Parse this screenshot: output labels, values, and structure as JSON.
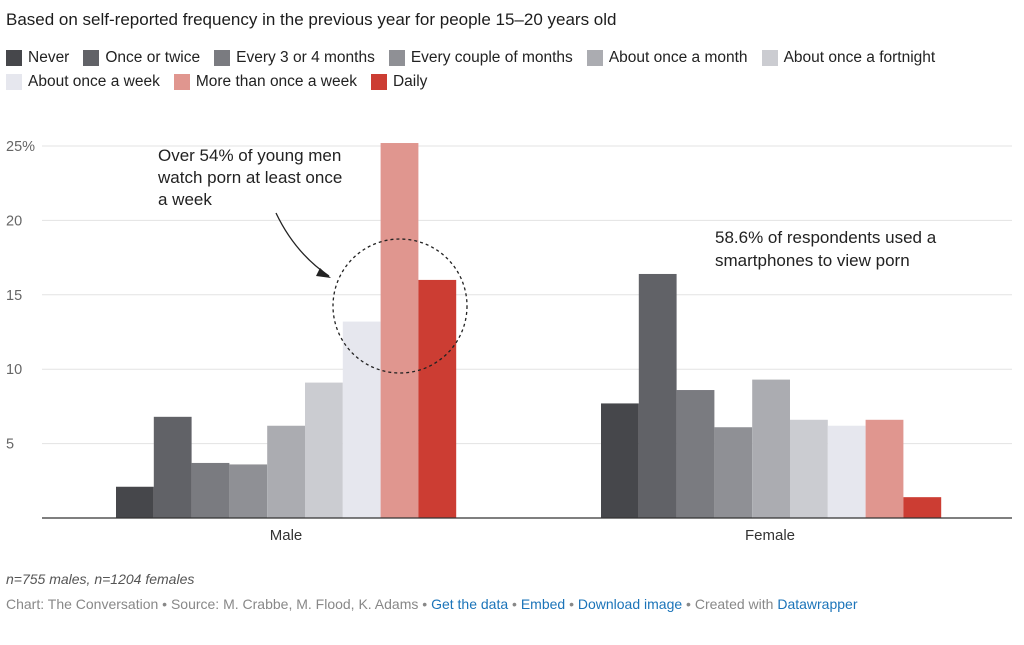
{
  "subtitle": "Based on self-reported frequency in the previous year for people 15–20 years old",
  "colors": [
    "#46474b",
    "#616267",
    "#7a7b80",
    "#8f9095",
    "#abacb1",
    "#cbccd1",
    "#e6e7ee",
    "#e0968f",
    "#cc3d33"
  ],
  "chart_data": {
    "type": "bar",
    "categories": [
      "Male",
      "Female"
    ],
    "series": [
      {
        "name": "Never",
        "values": [
          2.1,
          7.7
        ]
      },
      {
        "name": "Once or twice",
        "values": [
          6.8,
          16.4
        ]
      },
      {
        "name": "Every 3 or 4 months",
        "values": [
          3.7,
          8.6
        ]
      },
      {
        "name": "Every couple of months",
        "values": [
          3.6,
          6.1
        ]
      },
      {
        "name": "About once a month",
        "values": [
          6.2,
          9.3
        ]
      },
      {
        "name": "About once a fortnight",
        "values": [
          9.1,
          6.6
        ]
      },
      {
        "name": "About once a week",
        "values": [
          13.2,
          6.2
        ]
      },
      {
        "name": "More than once a week",
        "values": [
          25.2,
          6.6
        ]
      },
      {
        "name": "Daily",
        "values": [
          16.0,
          1.4
        ]
      }
    ],
    "ylim": [
      0,
      25
    ],
    "yticks": [
      5,
      10,
      15,
      20,
      25
    ],
    "ytick_labels": [
      "5",
      "10",
      "15",
      "20",
      "25%"
    ],
    "grid": true,
    "legend_position": "top-left",
    "annotations": [
      "Over 54% of young men watch porn at least once a week",
      "58.6% of respondents used a smartphones to view porn"
    ]
  },
  "annotation_lines": {
    "male": [
      "Over 54% of young men",
      "watch porn at least once",
      "a week"
    ],
    "female": [
      "58.6% of respondents used a",
      "smartphones to view porn"
    ]
  },
  "footer": {
    "note": "n=755 males, n=1204 females",
    "source": "Chart: The Conversation • Source: M. Crabbe, M. Flood, K. Adams •",
    "get_data": "Get the data",
    "sep1": "•",
    "embed": "Embed",
    "sep2": "•",
    "download": "Download image",
    "created": "• Created with",
    "datawrapper": "Datawrapper"
  }
}
